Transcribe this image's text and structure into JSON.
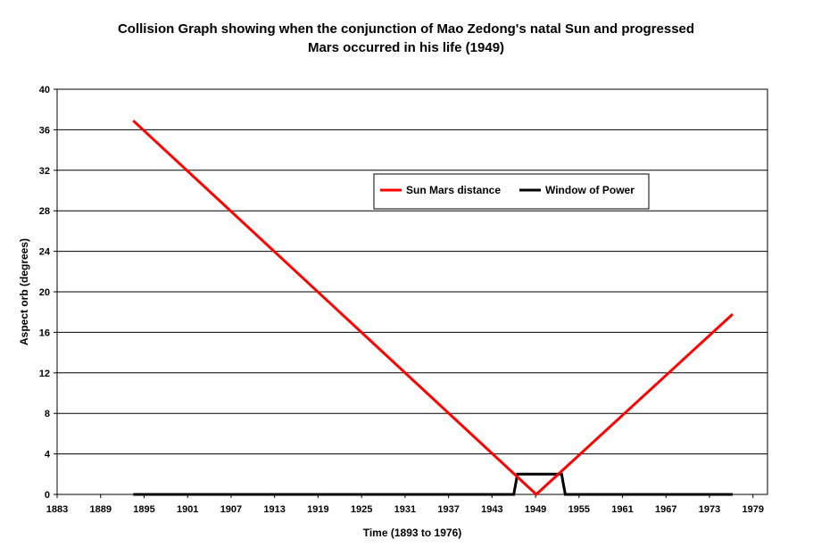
{
  "chart_data": {
    "type": "line",
    "title_lines": [
      "Collision Graph showing when the conjunction of Mao Zedong's natal Sun and progressed",
      "Mars occurred in his life (1949)"
    ],
    "xlabel": "Time (1893 to 1976)",
    "ylabel": "Aspect orb (degrees)",
    "xlim": [
      1883,
      1981
    ],
    "ylim": [
      0,
      40
    ],
    "x_ticks": [
      1883,
      1889,
      1895,
      1901,
      1907,
      1913,
      1919,
      1925,
      1931,
      1937,
      1943,
      1949,
      1955,
      1961,
      1967,
      1973,
      1979
    ],
    "y_ticks": [
      0,
      4,
      8,
      12,
      16,
      20,
      24,
      28,
      32,
      36,
      40
    ],
    "grid": "horizontal",
    "legend_position": "top-center",
    "series": [
      {
        "name": "Sun Mars distance",
        "color": "#ff0000",
        "x": [
          1893.5,
          1949.1,
          1976.2
        ],
        "y": [
          36.9,
          0,
          17.8
        ]
      },
      {
        "name": "Window of Power",
        "color": "#000000",
        "x": [
          1893.5,
          1946.0,
          1946.5,
          1952.6,
          1953.1,
          1976.2
        ],
        "y": [
          0,
          0,
          2,
          2,
          0,
          0
        ]
      }
    ]
  }
}
